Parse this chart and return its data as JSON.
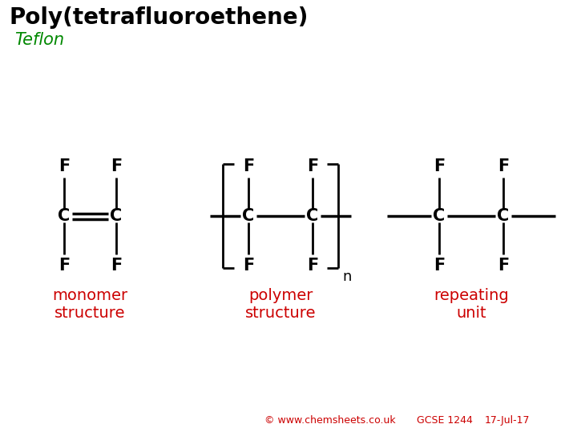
{
  "title": "Poly(tetrafluoroethene)",
  "subtitle": "Teflon",
  "title_color": "#000000",
  "subtitle_color": "#008800",
  "label_color": "#cc0000",
  "bg_color": "#ffffff",
  "footer_text": "© www.chemsheets.co.uk",
  "footer_gcse": "GCSE 1244",
  "footer_date": "17-Jul-17",
  "monomer_label": "monomer\nstructure",
  "polymer_label": "polymer\nstructure",
  "repeating_label": "repeating\nunit"
}
